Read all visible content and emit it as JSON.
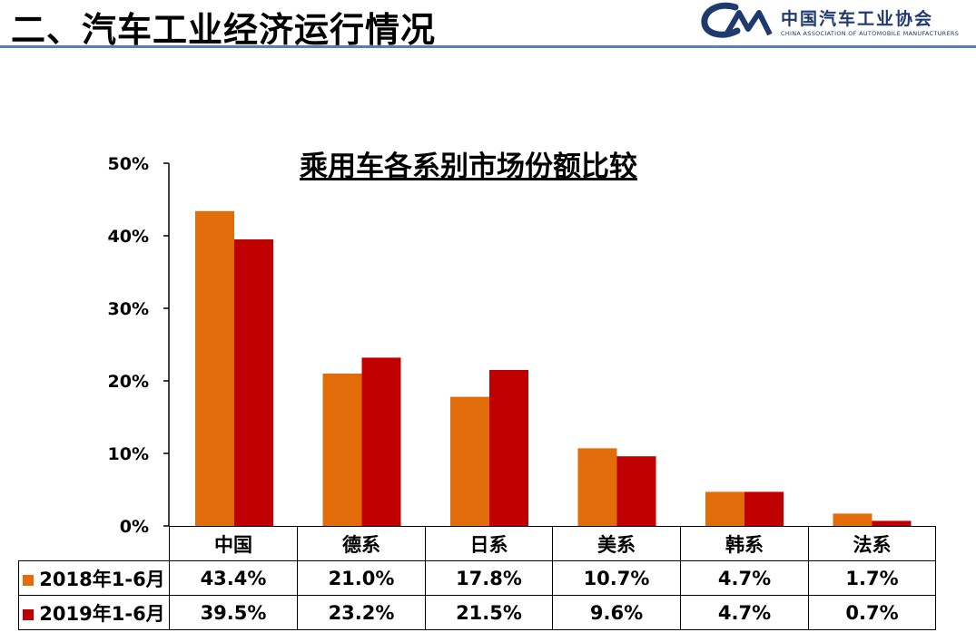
{
  "header": {
    "title": "二、汽车工业经济运行情况",
    "logo_mark": "CAM",
    "logo_cn": "中国汽车工业协会",
    "logo_en": "CHINA ASSOCIATION OF AUTOMOBILE MANUFACTURERS"
  },
  "colors": {
    "series_2018": "#e36c0a",
    "series_2019": "#c00000",
    "header_rule": "#5b7fb3",
    "logo": "#1f3a6e"
  },
  "chart_data": {
    "type": "bar",
    "title": "乘用车各系别市场份额比较",
    "categories": [
      "中国",
      "德系",
      "日系",
      "美系",
      "韩系",
      "法系"
    ],
    "series": [
      {
        "name": "2018年1-6月",
        "values": [
          43.4,
          21.0,
          17.8,
          10.7,
          4.7,
          1.7
        ],
        "labels": [
          "43.4%",
          "21.0%",
          "17.8%",
          "10.7%",
          "4.7%",
          "1.7%"
        ]
      },
      {
        "name": "2019年1-6月",
        "values": [
          39.5,
          23.2,
          21.5,
          9.6,
          4.7,
          0.7
        ],
        "labels": [
          "39.5%",
          "23.2%",
          "21.5%",
          "9.6%",
          "4.7%",
          "0.7%"
        ]
      }
    ],
    "y_ticks": [
      "0%",
      "10%",
      "20%",
      "30%",
      "40%",
      "50%"
    ],
    "ylim": [
      0,
      50
    ],
    "grid": false,
    "legend": "data table below chart"
  }
}
